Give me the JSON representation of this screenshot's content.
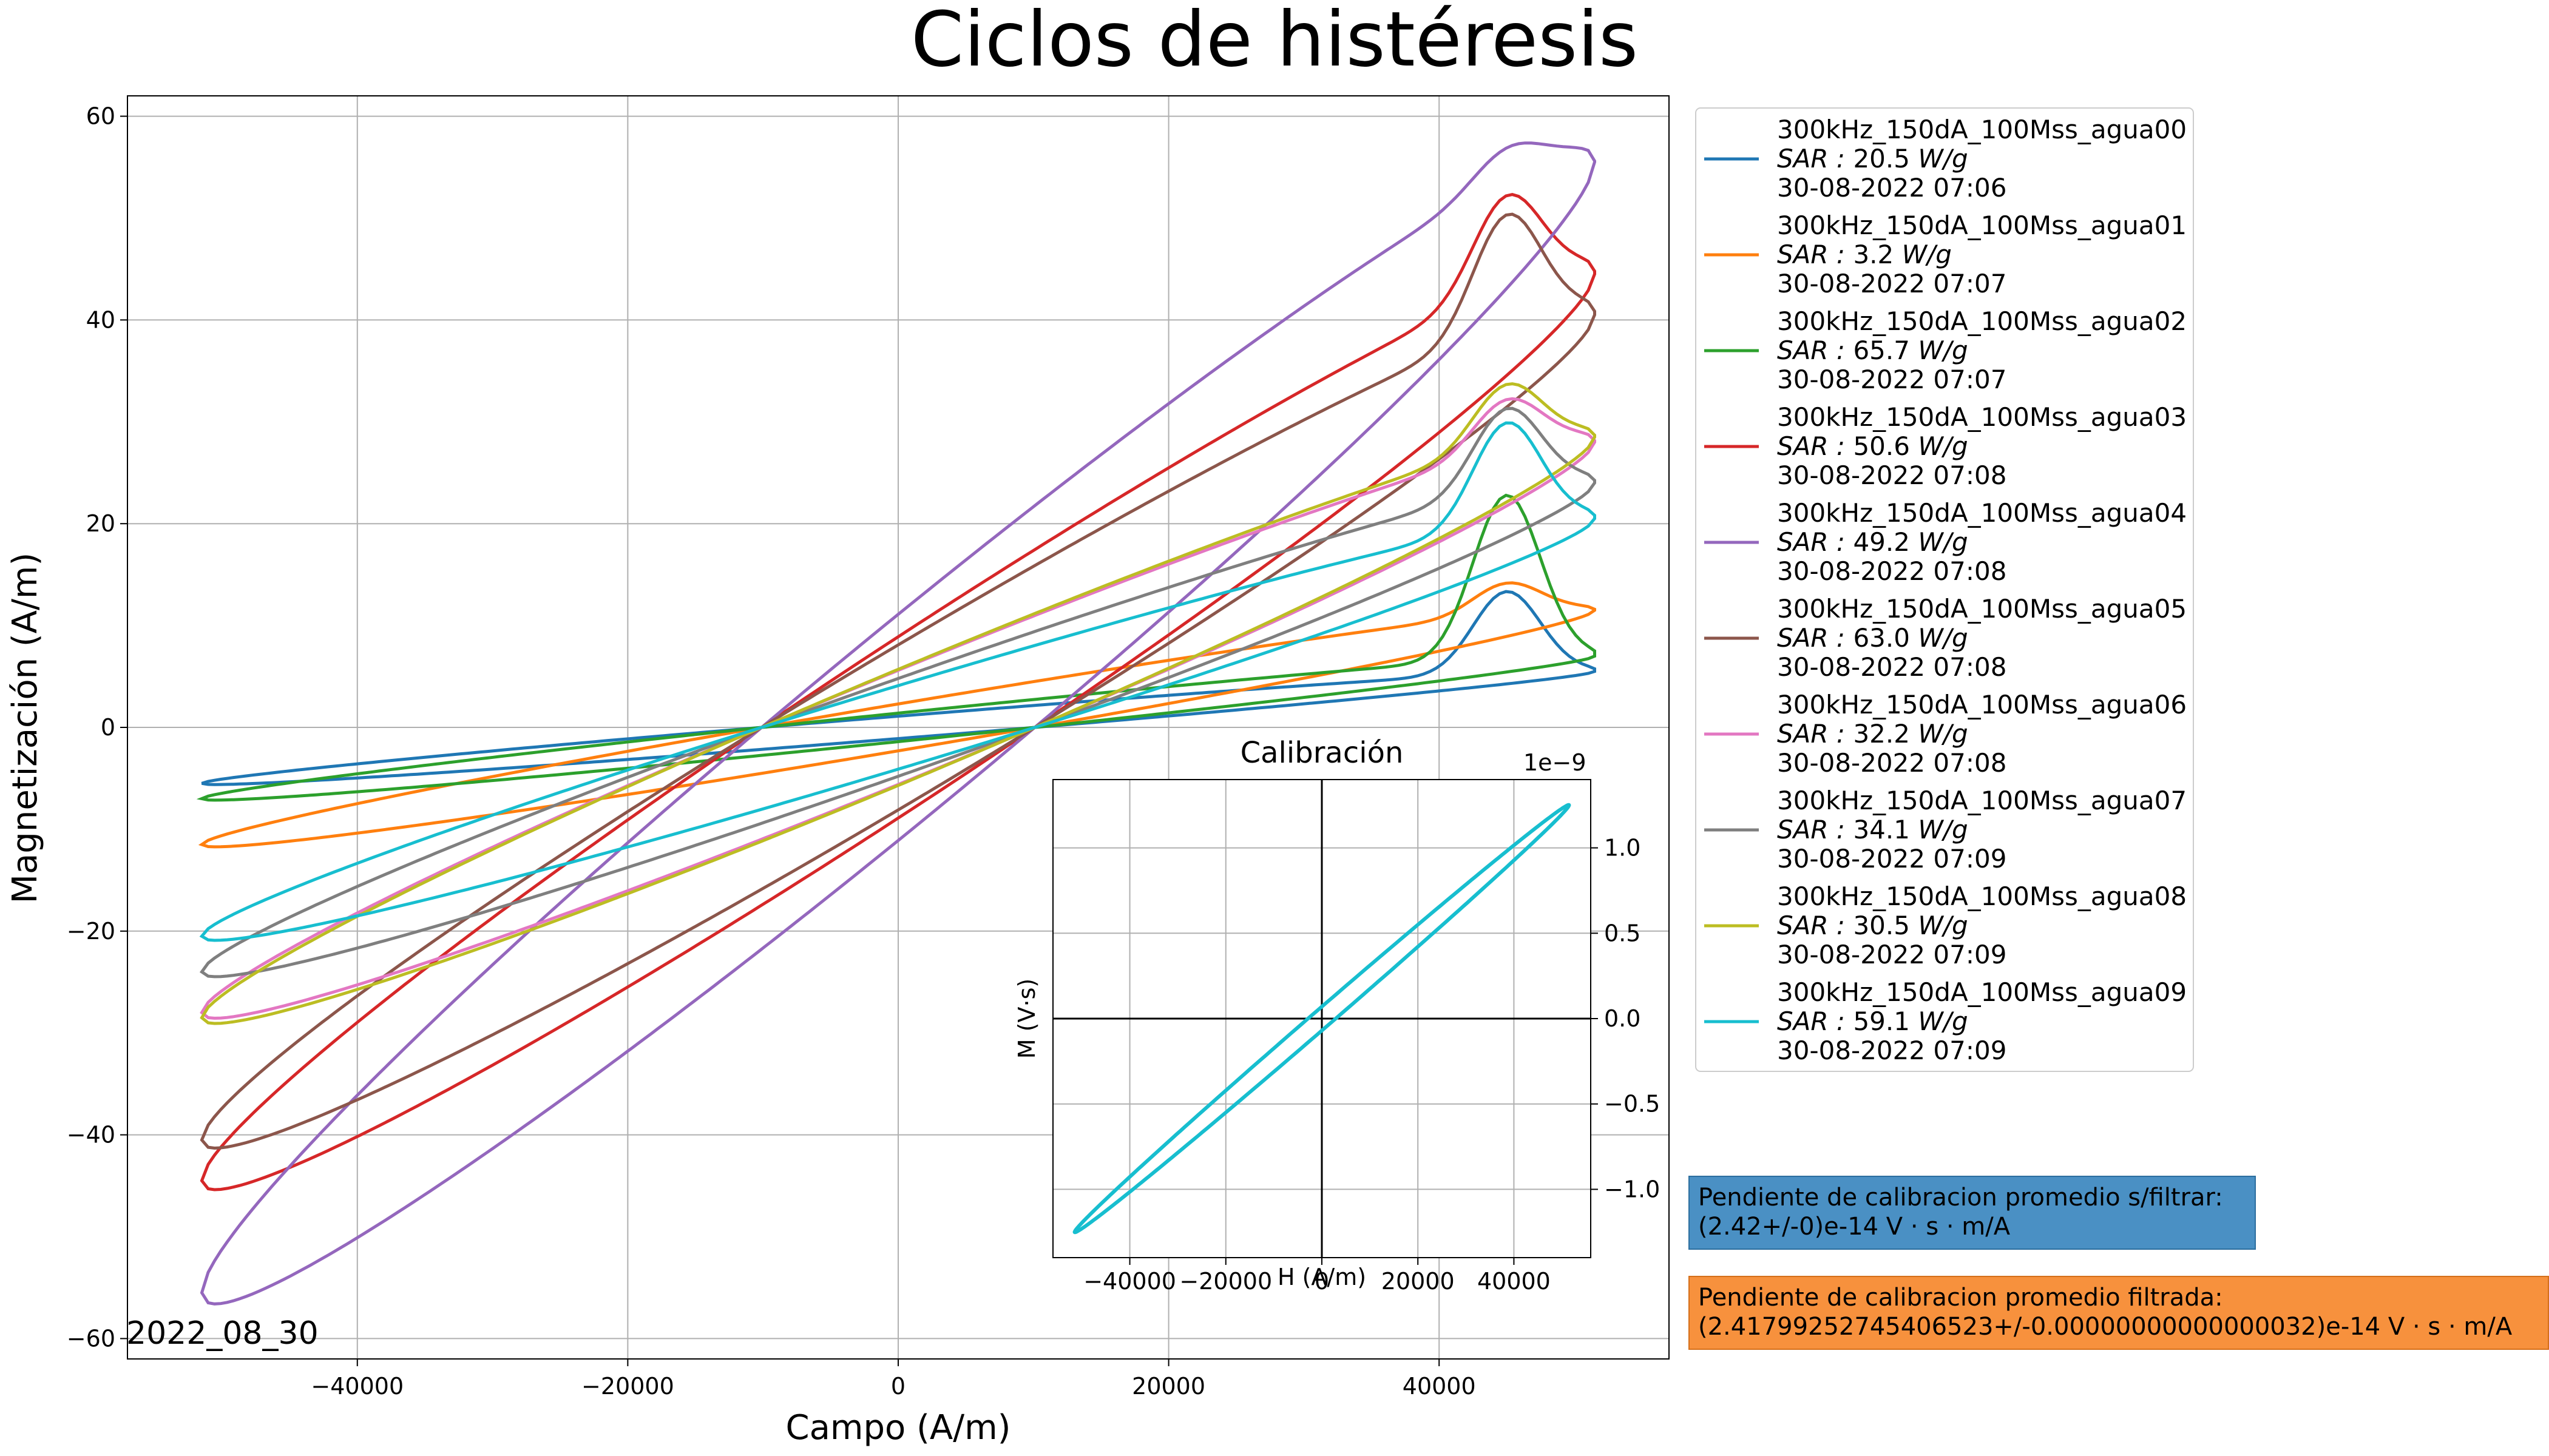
{
  "chart_data": {
    "type": "line",
    "title": "Ciclos de histéresis",
    "xlabel": "Campo (A/m)",
    "ylabel": "Magnetización (A/m)",
    "xlim": [
      -57000,
      57000
    ],
    "ylim": [
      -62,
      62
    ],
    "xticks": [
      -40000,
      -20000,
      0,
      20000,
      40000
    ],
    "xtick_labels": [
      "−40000",
      "−20000",
      "0",
      "20000",
      "40000"
    ],
    "yticks": [
      -60,
      -40,
      -20,
      0,
      20,
      40,
      60
    ],
    "ytick_labels": [
      "−60",
      "−40",
      "−20",
      "0",
      "20",
      "40",
      "60"
    ],
    "grid": true,
    "legend_position": "outside-right",
    "series": [
      {
        "name": "300kHz_150dA_100Mss_agua00",
        "sar_prefix": "SAR :",
        "sar": "20.5",
        "sar_unit": "W/g",
        "date": "30-08-2022 07:06",
        "color": "#1f77b4",
        "amp": 5.5,
        "bump": 8
      },
      {
        "name": "300kHz_150dA_100Mss_agua01",
        "sar_prefix": "SAR :",
        "sar": "3.2",
        "sar_unit": "W/g",
        "date": "30-08-2022 07:07",
        "color": "#ff7f0e",
        "amp": 11.5,
        "bump": 3
      },
      {
        "name": "300kHz_150dA_100Mss_agua02",
        "sar_prefix": "SAR :",
        "sar": "65.7",
        "sar_unit": "W/g",
        "date": "30-08-2022 07:07",
        "color": "#2ca02c",
        "amp": 7.0,
        "bump": 16
      },
      {
        "name": "300kHz_150dA_100Mss_agua03",
        "sar_prefix": "SAR :",
        "sar": "50.6",
        "sar_unit": "W/g",
        "date": "30-08-2022 07:08",
        "color": "#d62728",
        "amp": 44.5,
        "bump": 9
      },
      {
        "name": "300kHz_150dA_100Mss_agua04",
        "sar_prefix": "SAR :",
        "sar": "49.2",
        "sar_unit": "W/g",
        "date": "30-08-2022 07:08",
        "color": "#9467bd",
        "amp": 55.5,
        "bump": 3
      },
      {
        "name": "300kHz_150dA_100Mss_agua05",
        "sar_prefix": "SAR :",
        "sar": "63.0",
        "sar_unit": "W/g",
        "date": "30-08-2022 07:08",
        "color": "#8c564b",
        "amp": 40.5,
        "bump": 11
      },
      {
        "name": "300kHz_150dA_100Mss_agua06",
        "sar_prefix": "SAR :",
        "sar": "32.2",
        "sar_unit": "W/g",
        "date": "30-08-2022 07:08",
        "color": "#e377c2",
        "amp": 28.0,
        "bump": 5
      },
      {
        "name": "300kHz_150dA_100Mss_agua07",
        "sar_prefix": "SAR :",
        "sar": "34.1",
        "sar_unit": "W/g",
        "date": "30-08-2022 07:09",
        "color": "#7f7f7f",
        "amp": 24.0,
        "bump": 8
      },
      {
        "name": "300kHz_150dA_100Mss_agua08",
        "sar_prefix": "SAR :",
        "sar": "30.5",
        "sar_unit": "W/g",
        "date": "30-08-2022 07:09",
        "color": "#bcbd22",
        "amp": 28.5,
        "bump": 6
      },
      {
        "name": "300kHz_150dA_100Mss_agua09",
        "sar_prefix": "SAR :",
        "sar": "59.1",
        "sar_unit": "W/g",
        "date": "30-08-2022 07:09",
        "color": "#17becf",
        "amp": 20.5,
        "bump": 10
      }
    ],
    "inset": {
      "title": "Calibración",
      "xlabel": "H (A/m)",
      "ylabel": "M (V·s)",
      "offset_label": "1e−9",
      "xlim": [
        -56000,
        56000
      ],
      "ylim": [
        -1.4,
        1.4
      ],
      "xticks": [
        -40000,
        -20000,
        0,
        20000,
        40000
      ],
      "xtick_labels": [
        "−40000",
        "−20000",
        "0",
        "20000",
        "40000"
      ],
      "yticks": [
        -1.0,
        -0.5,
        0.0,
        0.5,
        1.0
      ],
      "ytick_labels": [
        "−1.0",
        "−0.5",
        "0.0",
        "0.5",
        "1.0"
      ],
      "color": "#17becf",
      "amp": 1.25,
      "hmax": 51500
    }
  },
  "annotations": {
    "date_stamp": "2022_08_30",
    "slope_unfiltered_line1": "Pendiente de calibracion promedio s/filtrar:",
    "slope_unfiltered_line2": " (2.42+/-0)e-14 V · s · m/A",
    "slope_filtered_line1": "Pendiente de calibracion promedio filtrada:",
    "slope_filtered_line2": " (2.41799252745406523+/-0.00000000000000032)e-14 V · s · m/A"
  },
  "colors": {
    "blue_box": "#4a90c4",
    "orange_box": "#f7913d"
  }
}
